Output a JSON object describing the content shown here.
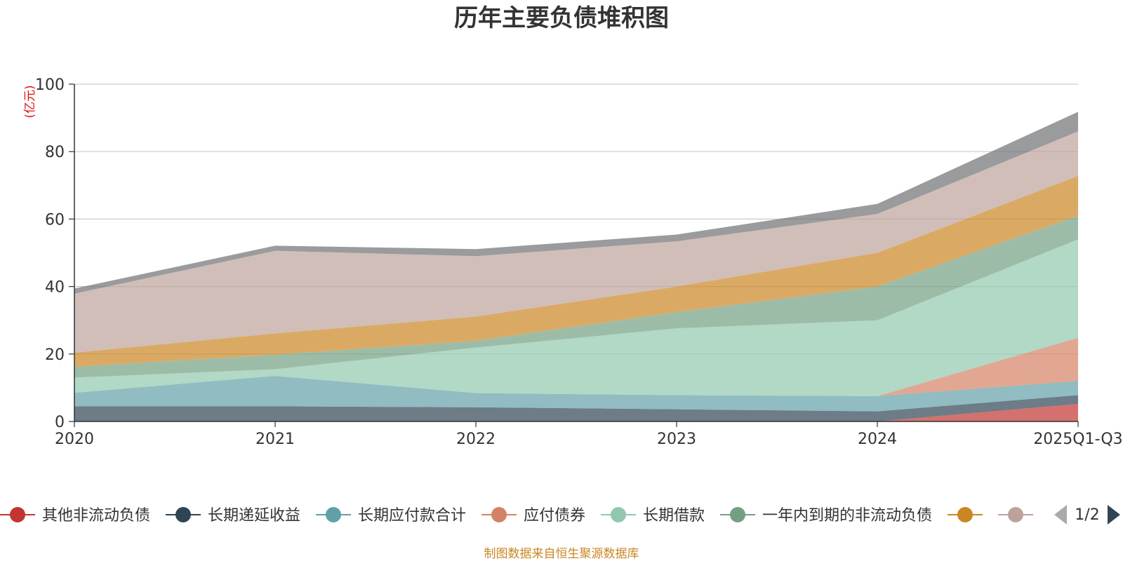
{
  "chart_data": {
    "type": "area",
    "stacked": true,
    "title": "历年主要负债堆积图",
    "unit_label": "(亿元)",
    "categories": [
      "2020",
      "2021",
      "2022",
      "2023",
      "2024",
      "2025Q1-Q3"
    ],
    "ylim": [
      0,
      100
    ],
    "yticks": [
      0,
      20,
      40,
      60,
      80,
      100
    ],
    "grid": true,
    "legend_position": "bottom",
    "series": [
      {
        "name": "其他非流动负债",
        "color": "#c23531",
        "values": [
          0,
          0,
          0,
          0,
          0,
          5.2
        ]
      },
      {
        "name": "长期递延收益",
        "color": "#2f4554",
        "values": [
          4.5,
          4.5,
          4.2,
          3.6,
          3.0,
          2.6
        ]
      },
      {
        "name": "长期应付款合计",
        "color": "#61a0a8",
        "values": [
          4.0,
          9.0,
          4.2,
          4.2,
          4.5,
          4.2
        ]
      },
      {
        "name": "应付债券",
        "color": "#d48265",
        "values": [
          0,
          0,
          0,
          0,
          0,
          12.8
        ]
      },
      {
        "name": "长期借款",
        "color": "#91c7ae",
        "values": [
          4.5,
          2.0,
          13.5,
          19.8,
          22.5,
          29.2
        ]
      },
      {
        "name": "一年内到期的非流动负债",
        "color": "#749f83",
        "values": [
          3.2,
          4.3,
          2.0,
          4.8,
          10.0,
          7.0
        ]
      },
      {
        "name": "",
        "color": "#ca8622",
        "values": [
          4.2,
          6.3,
          7.2,
          7.6,
          10.0,
          11.8
        ]
      },
      {
        "name": "",
        "color": "#bda29a",
        "values": [
          17.5,
          24.5,
          17.9,
          13.4,
          11.5,
          13.2
        ]
      },
      {
        "name": "",
        "color": "#6e7074",
        "values": [
          1.5,
          1.5,
          2.1,
          2.0,
          3.0,
          5.8
        ]
      }
    ],
    "source_note": "制图数据来自恒生聚源数据库",
    "legend_page": "1/2"
  }
}
